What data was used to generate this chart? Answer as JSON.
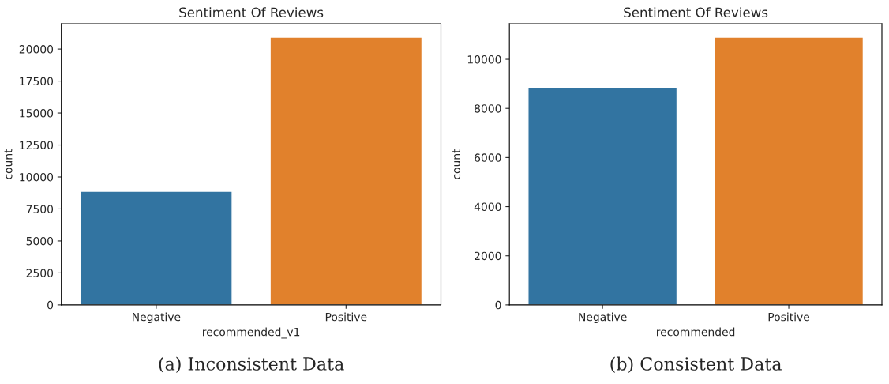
{
  "chart_data": [
    {
      "type": "bar",
      "title": "Sentiment Of Reviews",
      "xlabel": "recommended_v1",
      "ylabel": "count",
      "categories": [
        "Negative",
        "Positive"
      ],
      "values": [
        8890,
        20930
      ],
      "colors": [
        "#3274a1",
        "#e1812c"
      ],
      "ylim": [
        0,
        21975
      ],
      "yticks": [
        0,
        2500,
        5000,
        7500,
        10000,
        12500,
        15000,
        17500,
        20000
      ],
      "annotations": [
        "(a) Inconsistent Data"
      ]
    },
    {
      "type": "bar",
      "title": "Sentiment Of Reviews",
      "xlabel": "recommended",
      "ylabel": "count",
      "categories": [
        "Negative",
        "Positive"
      ],
      "values": [
        8840,
        10900
      ],
      "colors": [
        "#3274a1",
        "#e1812c"
      ],
      "ylim": [
        0,
        11445
      ],
      "yticks": [
        0,
        2000,
        4000,
        6000,
        8000,
        10000
      ],
      "annotations": [
        "(b) Consistent Data"
      ]
    }
  ]
}
